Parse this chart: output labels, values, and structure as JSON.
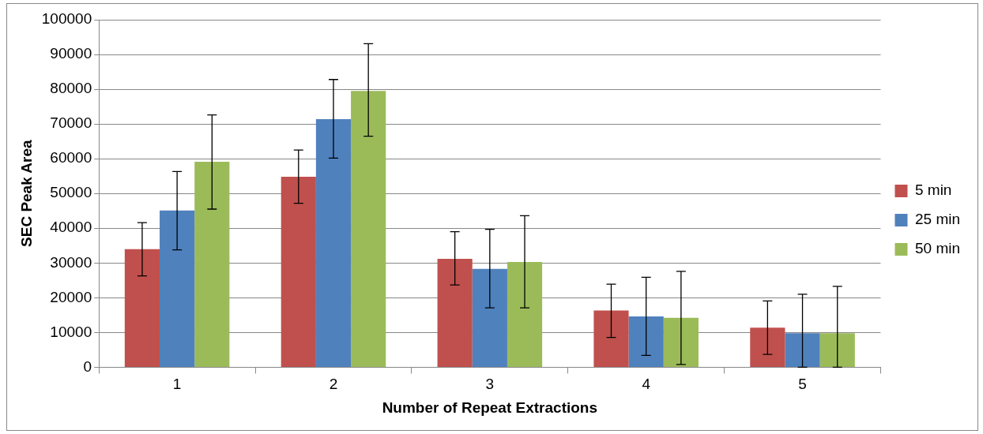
{
  "chart_data": {
    "type": "bar",
    "xlabel": "Number of Repeat Extractions",
    "ylabel": "SEC Peak Area",
    "categories": [
      "1",
      "2",
      "3",
      "4",
      "5"
    ],
    "series": [
      {
        "name": "5 min",
        "color": "#c0504d",
        "values": [
          34000,
          54800,
          31200,
          16300,
          11400
        ],
        "errors": [
          [
            26300,
            41600
          ],
          [
            47200,
            62500
          ],
          [
            23700,
            39000
          ],
          [
            8600,
            23900
          ],
          [
            3700,
            19100
          ]
        ]
      },
      {
        "name": "25 min",
        "color": "#4f81bd",
        "values": [
          45100,
          71400,
          28300,
          14600,
          9800
        ],
        "errors": [
          [
            33800,
            56300
          ],
          [
            60200,
            82800
          ],
          [
            17100,
            39700
          ],
          [
            3400,
            25900
          ],
          [
            0,
            21000
          ]
        ]
      },
      {
        "name": "50 min",
        "color": "#9bbb59",
        "values": [
          59100,
          79500,
          30300,
          14200,
          9800
        ],
        "errors": [
          [
            45500,
            72600
          ],
          [
            66500,
            93100
          ],
          [
            17100,
            43600
          ],
          [
            800,
            27600
          ],
          [
            0,
            23300
          ]
        ]
      }
    ],
    "ylim": [
      0,
      100000
    ],
    "yticks": [
      0,
      10000,
      20000,
      30000,
      40000,
      50000,
      60000,
      70000,
      80000,
      90000,
      100000
    ],
    "grid": "y",
    "legend": "right"
  }
}
